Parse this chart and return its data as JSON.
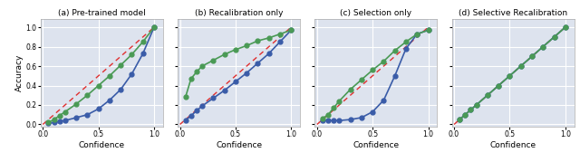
{
  "titles": [
    "(a) Pre-trained model",
    "(b) Recalibration only",
    "(c) Selection only",
    "(d) Selective Recalibration"
  ],
  "xlabel": "Confidence",
  "ylabel": "Accuracy",
  "bg_color": "#dde3ee",
  "blue_color": "#3a5ca8",
  "green_color": "#4a9a55",
  "red_color": "#e03030",
  "panels": [
    {
      "blue_x": [
        0.05,
        0.1,
        0.15,
        0.2,
        0.3,
        0.4,
        0.5,
        0.6,
        0.7,
        0.8,
        0.9,
        1.0
      ],
      "blue_y": [
        0.01,
        0.02,
        0.03,
        0.04,
        0.07,
        0.1,
        0.16,
        0.25,
        0.36,
        0.52,
        0.73,
        1.0
      ],
      "green_x": [
        0.05,
        0.1,
        0.15,
        0.2,
        0.3,
        0.4,
        0.5,
        0.6,
        0.7,
        0.8,
        0.9,
        1.0
      ],
      "green_y": [
        0.02,
        0.05,
        0.09,
        0.13,
        0.21,
        0.3,
        0.4,
        0.5,
        0.61,
        0.72,
        0.85,
        1.0
      ]
    },
    {
      "blue_x": [
        0.05,
        0.1,
        0.15,
        0.2,
        0.3,
        0.4,
        0.5,
        0.6,
        0.7,
        0.8,
        0.9,
        1.0
      ],
      "blue_y": [
        0.04,
        0.09,
        0.14,
        0.19,
        0.27,
        0.35,
        0.44,
        0.53,
        0.63,
        0.73,
        0.85,
        0.97
      ],
      "green_x": [
        0.05,
        0.1,
        0.15,
        0.2,
        0.3,
        0.4,
        0.5,
        0.6,
        0.7,
        0.8,
        0.9,
        1.0
      ],
      "green_y": [
        0.28,
        0.47,
        0.54,
        0.6,
        0.66,
        0.72,
        0.77,
        0.81,
        0.86,
        0.89,
        0.93,
        0.97
      ]
    },
    {
      "blue_x": [
        0.05,
        0.1,
        0.15,
        0.2,
        0.3,
        0.4,
        0.5,
        0.6,
        0.7,
        0.8,
        0.9,
        1.0
      ],
      "blue_y": [
        0.04,
        0.04,
        0.04,
        0.04,
        0.05,
        0.07,
        0.13,
        0.25,
        0.5,
        0.78,
        0.93,
        0.97
      ],
      "green_x": [
        0.05,
        0.1,
        0.15,
        0.2,
        0.3,
        0.4,
        0.5,
        0.6,
        0.7,
        0.8,
        0.9,
        1.0
      ],
      "green_y": [
        0.06,
        0.1,
        0.17,
        0.24,
        0.36,
        0.46,
        0.56,
        0.65,
        0.76,
        0.85,
        0.93,
        0.97
      ]
    },
    {
      "blue_x": [
        0.05,
        0.1,
        0.15,
        0.2,
        0.3,
        0.4,
        0.5,
        0.6,
        0.7,
        0.8,
        0.9,
        1.0
      ],
      "blue_y": [
        0.05,
        0.1,
        0.15,
        0.2,
        0.3,
        0.4,
        0.5,
        0.6,
        0.7,
        0.8,
        0.9,
        1.0
      ],
      "green_x": [
        0.05,
        0.1,
        0.15,
        0.2,
        0.3,
        0.4,
        0.5,
        0.6,
        0.7,
        0.8,
        0.9,
        1.0
      ],
      "green_y": [
        0.05,
        0.1,
        0.15,
        0.2,
        0.3,
        0.4,
        0.5,
        0.6,
        0.7,
        0.8,
        0.9,
        1.0
      ]
    }
  ]
}
